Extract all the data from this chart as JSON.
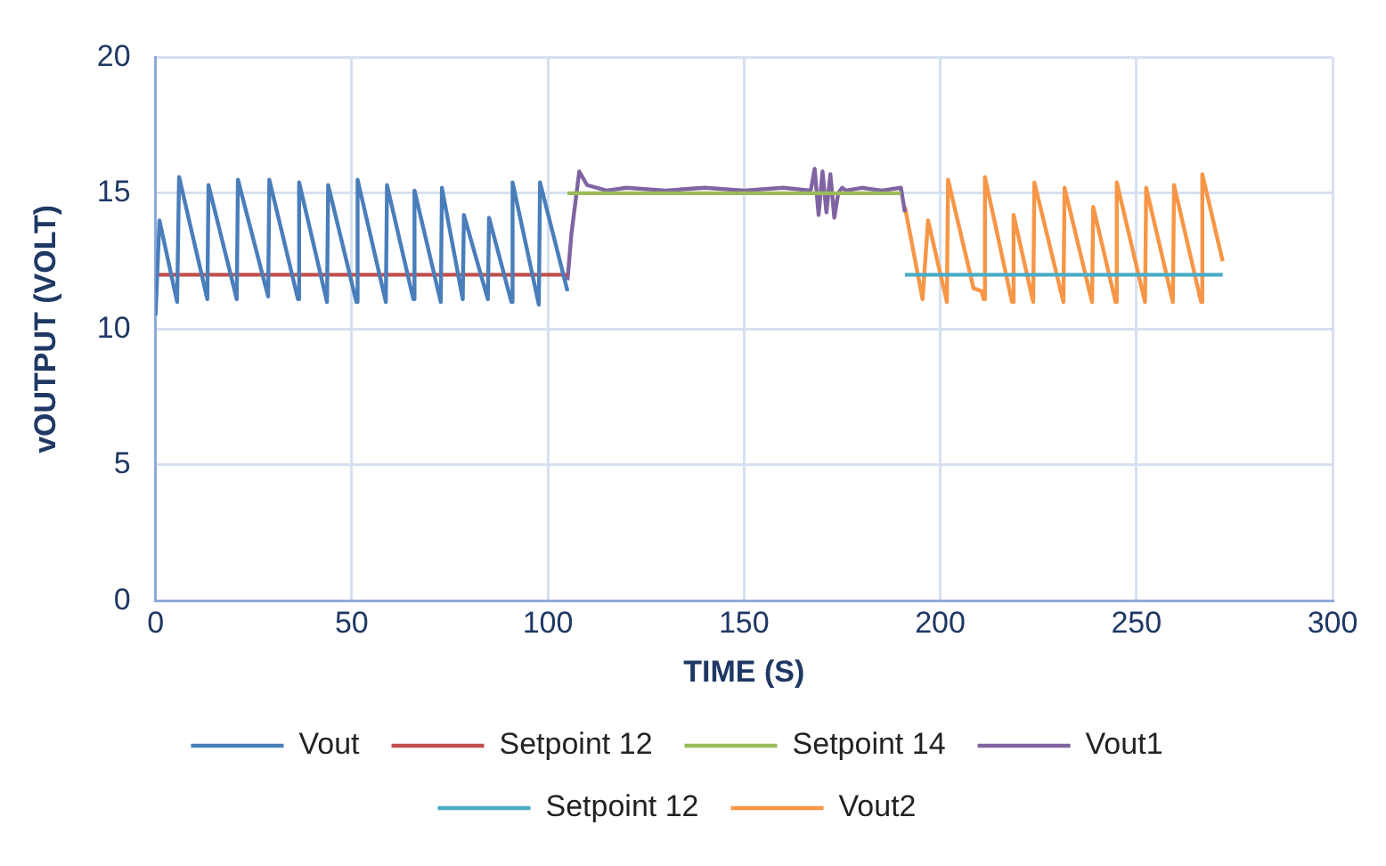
{
  "chart_data": {
    "type": "line",
    "xlabel": "TIME (S)",
    "ylabel": "vOUTPUT (VOLT)",
    "xlim": [
      0,
      300
    ],
    "xticks": [
      0,
      50,
      100,
      150,
      200,
      250,
      300
    ],
    "ylim": [
      0,
      20
    ],
    "yticks": [
      0,
      5,
      10,
      15,
      20
    ],
    "grid": true,
    "legend": "bottom",
    "marker": "none",
    "line_style": "solid",
    "series": [
      {
        "name": "Vout",
        "color": "#4a7ebb",
        "x": [
          0,
          1,
          5.5,
          6,
          13.2,
          13.5,
          20.7,
          21,
          28.7,
          29,
          36.3,
          36.6,
          43.7,
          44,
          51.2,
          51.5,
          58.7,
          59,
          65.7,
          66,
          72.7,
          73,
          78.3,
          78.6,
          84.7,
          85,
          90.7,
          91,
          97.7,
          98,
          105
        ],
        "values": [
          10.5,
          14,
          11,
          15.6,
          11.1,
          15.3,
          11.1,
          15.5,
          11.2,
          15.5,
          11.1,
          15.4,
          11,
          15.3,
          11,
          15.5,
          11,
          15.3,
          11.1,
          15.1,
          11,
          15.2,
          11.1,
          14.2,
          11.1,
          14.1,
          11,
          15.4,
          10.9,
          15.4,
          11.4
        ]
      },
      {
        "name": "Setpoint 12",
        "color": "#c0504d",
        "x": [
          0,
          105
        ],
        "values": [
          12,
          12
        ]
      },
      {
        "name": "Setpoint 14",
        "color": "#9bbb59",
        "x": [
          105,
          190
        ],
        "values": [
          15,
          15
        ]
      },
      {
        "name": "Vout1",
        "color": "#8064a2",
        "x": [
          105,
          106,
          108,
          110,
          115,
          120,
          130,
          140,
          150,
          160,
          167,
          168,
          169,
          170,
          171,
          172,
          173,
          174,
          175,
          176,
          180,
          185,
          190,
          191
        ],
        "values": [
          11.8,
          13.5,
          15.8,
          15.3,
          15.1,
          15.2,
          15.1,
          15.2,
          15.1,
          15.2,
          15.1,
          15.9,
          14.2,
          15.8,
          14.3,
          15.7,
          14.1,
          15,
          15.2,
          15.1,
          15.2,
          15.1,
          15.2,
          14.3
        ]
      },
      {
        "name": "Setpoint 12",
        "color": "#4bacc6",
        "x": [
          191,
          272
        ],
        "values": [
          12,
          12
        ]
      },
      {
        "name": "Vout2",
        "color": "#f79646",
        "x": [
          191,
          195.5,
          196.9,
          201.7,
          202,
          208.5,
          210.5,
          211.1,
          211.4,
          218.3,
          218.7,
          223.7,
          224,
          231.4,
          231.7,
          238.7,
          239,
          244.7,
          245,
          252.2,
          252.5,
          259.3,
          259.6,
          266.5,
          266.8,
          272
        ],
        "values": [
          14.5,
          11.1,
          14,
          11,
          15.5,
          11.5,
          11.4,
          11.1,
          15.6,
          11,
          14.2,
          11,
          15.4,
          11,
          15.2,
          11,
          14.5,
          11,
          15.4,
          11,
          15.2,
          11,
          15.3,
          11,
          15.7,
          12.5
        ]
      }
    ]
  }
}
